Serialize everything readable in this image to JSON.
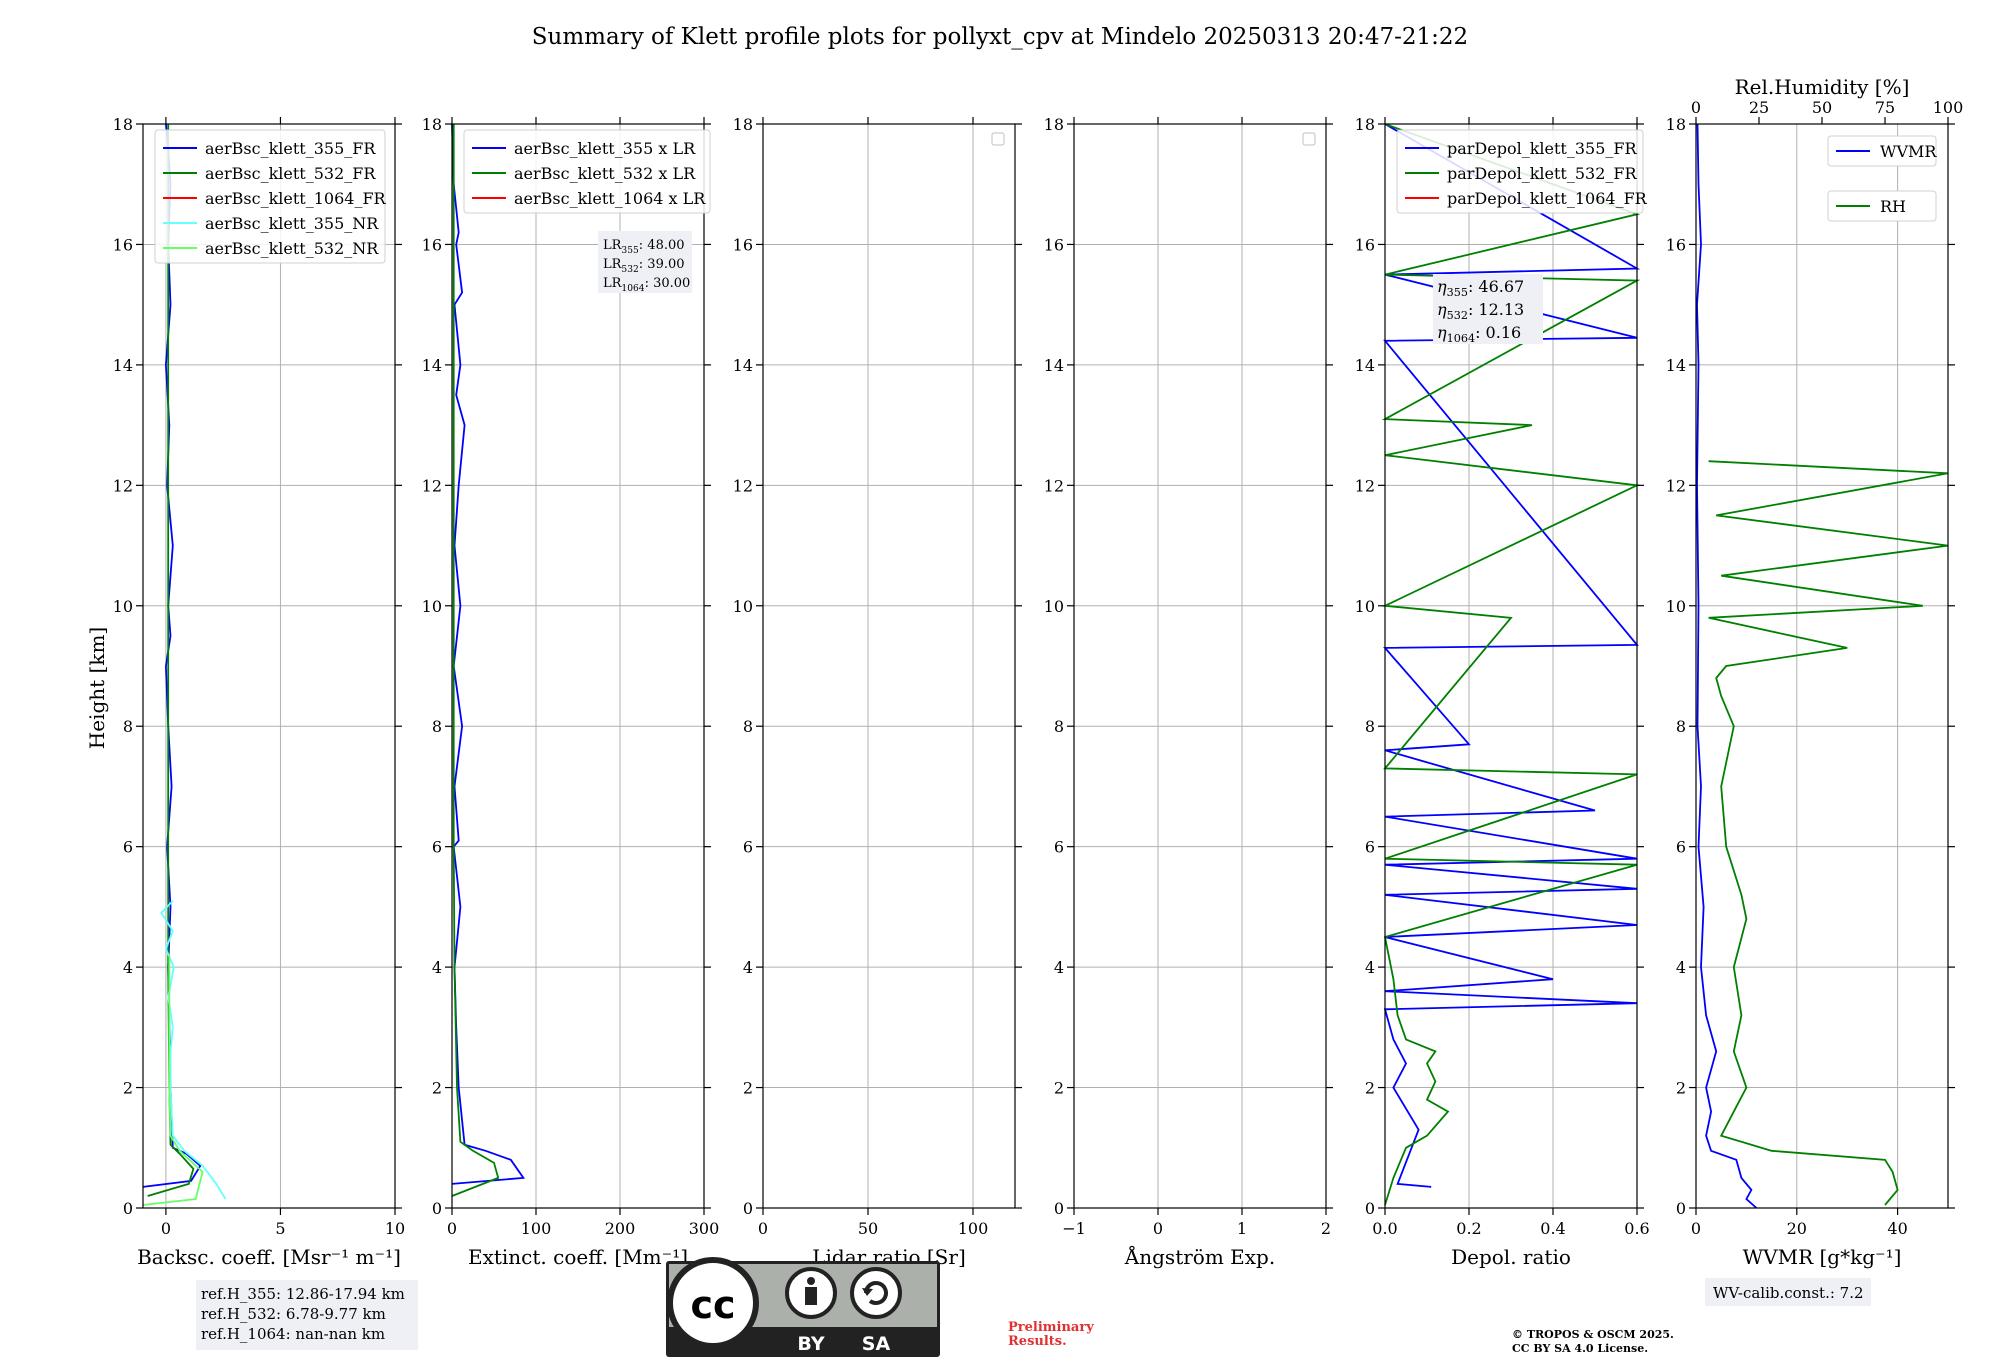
{
  "title": "Summary of Klett profile plots for pollyxt_cpv at Mindelo 20250313 20:47-21:22",
  "shared_ylabel": "Height [km]",
  "colors": {
    "c355": "#0000ff",
    "c532": "#008000",
    "c1064": "#ff0000",
    "c355nr": "#66ffff",
    "c532nr": "#66ff66"
  },
  "chart_data": [
    {
      "type": "line",
      "xlabel": "Backsc. coeff. [Msr⁻¹ m⁻¹]",
      "xlim": [
        -1,
        10
      ],
      "ylim": [
        0,
        18
      ],
      "xticks": [
        0,
        5,
        10
      ],
      "yticks": [
        0,
        2,
        4,
        6,
        8,
        10,
        12,
        14,
        16,
        18
      ],
      "legend": [
        "aerBsc_klett_355_FR",
        "aerBsc_klett_532_FR",
        "aerBsc_klett_1064_FR",
        "aerBsc_klett_355_NR",
        "aerBsc_klett_532_NR"
      ],
      "series": [
        {
          "name": "aerBsc_klett_355_FR",
          "color": "#0000ff",
          "x": [
            -1,
            1.1,
            1.5,
            0.9,
            0.3,
            0.2,
            0.15,
            0.1,
            0.2,
            0.05,
            0.25,
            0.1,
            0.0,
            0.2,
            0.1,
            0.3,
            0.05,
            0.15,
            0.0,
            0.2,
            0.1,
            0.2,
            0.1,
            0.0
          ],
          "y": [
            0.35,
            0.45,
            0.7,
            0.9,
            1.0,
            2.0,
            3.0,
            4.0,
            5.0,
            6.0,
            7.0,
            8.0,
            9.0,
            9.5,
            10.0,
            11.0,
            12.0,
            13.0,
            14.0,
            15.0,
            16.0,
            17.0,
            17.6,
            18.0
          ]
        },
        {
          "name": "aerBsc_klett_532_FR",
          "color": "#008000",
          "x": [
            -0.8,
            1.0,
            1.2,
            0.6,
            0.2,
            0.15,
            0.1,
            0.1,
            0.1,
            0.1,
            0.1,
            0.1
          ],
          "y": [
            0.2,
            0.4,
            0.65,
            0.9,
            1.05,
            2.0,
            4.0,
            6.0,
            8.0,
            10.0,
            14.0,
            18.0
          ]
        },
        {
          "name": "aerBsc_klett_355_NR",
          "color": "#66ffff",
          "x": [
            2.6,
            2.2,
            1.6,
            0.8,
            0.3,
            0.2,
            0.2,
            0.3,
            0.1,
            0.35,
            0.0,
            0.3,
            -0.2,
            0.3
          ],
          "y": [
            0.15,
            0.4,
            0.7,
            0.95,
            1.2,
            2.0,
            2.6,
            3.0,
            3.5,
            4.0,
            4.3,
            4.6,
            4.9,
            5.1
          ]
        },
        {
          "name": "aerBsc_klett_532_NR",
          "color": "#66ff66",
          "x": [
            -1,
            1.3,
            1.6,
            0.6,
            0.2,
            0.15,
            0.15,
            0.15,
            0.15
          ],
          "y": [
            0.05,
            0.15,
            0.6,
            0.95,
            1.2,
            2.0,
            3.0,
            3.8,
            4.2
          ]
        }
      ]
    },
    {
      "type": "line",
      "xlabel": "Extinct. coeff. [Mm⁻¹]",
      "xlim": [
        0,
        300
      ],
      "ylim": [
        0,
        18
      ],
      "xticks": [
        0,
        100,
        200,
        300
      ],
      "yticks": [
        0,
        2,
        4,
        6,
        8,
        10,
        12,
        14,
        16,
        18
      ],
      "legend": [
        "aerBsc_klett_355 x LR",
        "aerBsc_klett_532 x LR",
        "aerBsc_klett_1064 x LR"
      ],
      "lr_labels": [
        {
          "sym": "LR",
          "sub": "355",
          "text": ": 48.00"
        },
        {
          "sym": "LR",
          "sub": "532",
          "text": ": 39.00"
        },
        {
          "sym": "LR",
          "sub": "1064",
          "text": ": 30.00"
        }
      ],
      "series": [
        {
          "name": "aerBsc_klett_355 x LR",
          "color": "#0000ff",
          "x": [
            0,
            85,
            70,
            40,
            15,
            8,
            5,
            3,
            10,
            2,
            8,
            3,
            12,
            2,
            10,
            3,
            8,
            15,
            5,
            10,
            3,
            12,
            5,
            8,
            2,
            0
          ],
          "y": [
            0.4,
            0.5,
            0.8,
            0.95,
            1.05,
            2.0,
            3.0,
            4.0,
            5.0,
            6.0,
            6.1,
            7.0,
            8.0,
            9.0,
            10.0,
            11.0,
            12.0,
            13.0,
            13.5,
            14.0,
            15.0,
            15.2,
            16.0,
            16.2,
            17.0,
            18.0
          ]
        },
        {
          "name": "aerBsc_klett_532 x LR",
          "color": "#008000",
          "x": [
            0,
            55,
            50,
            25,
            10,
            6,
            3,
            2,
            2,
            2,
            2
          ],
          "y": [
            0.2,
            0.5,
            0.75,
            0.95,
            1.1,
            2.0,
            4.0,
            6.0,
            8.0,
            12.0,
            18.0
          ]
        }
      ]
    },
    {
      "type": "line",
      "xlabel": "Lidar ratio [Sr]",
      "xlim": [
        0,
        120
      ],
      "ylim": [
        0,
        18
      ],
      "xticks": [
        0,
        50,
        100
      ],
      "yticks": [
        0,
        2,
        4,
        6,
        8,
        10,
        12,
        14,
        16,
        18
      ],
      "legend": [],
      "series": []
    },
    {
      "type": "line",
      "xlabel": "Ångström Exp.",
      "xlim": [
        -1,
        2
      ],
      "ylim": [
        0,
        18
      ],
      "xticks": [
        -1,
        0,
        1,
        2
      ],
      "yticks": [
        0,
        2,
        4,
        6,
        8,
        10,
        12,
        14,
        16,
        18
      ],
      "legend": [],
      "series": []
    },
    {
      "type": "line",
      "xlabel": "Depol. ratio",
      "xlim": [
        0,
        0.6
      ],
      "ylim": [
        0,
        18
      ],
      "xticks": [
        0.0,
        0.2,
        0.4,
        0.6
      ],
      "yticks": [
        0,
        2,
        4,
        6,
        8,
        10,
        12,
        14,
        16,
        18
      ],
      "legend": [
        "parDepol_klett_355_FR",
        "parDepol_klett_532_FR",
        "parDepol_klett_1064_FR"
      ],
      "eta_labels": [
        {
          "sym": "η",
          "sub": "355",
          "text": ": 46.67"
        },
        {
          "sym": "η",
          "sub": "532",
          "text": ": 12.13"
        },
        {
          "sym": "η",
          "sub": "1064",
          "text": ": 0.16"
        }
      ],
      "series": [
        {
          "name": "parDepol_klett_355_FR",
          "color": "#0000ff",
          "x": [
            0.11,
            0.03,
            0.08,
            0.02,
            0.05,
            0.02,
            0.0,
            0.6,
            0.0,
            0.4,
            0.0,
            0.6,
            0.0,
            0.6,
            0.0,
            0.6,
            0.0,
            0.5,
            0.0,
            0.2,
            0.0,
            0.6,
            0.0,
            0.6,
            0.0,
            0.6,
            0.0
          ],
          "y": [
            0.35,
            0.4,
            1.3,
            2.0,
            2.4,
            2.8,
            3.3,
            3.4,
            3.6,
            3.8,
            4.5,
            4.7,
            5.2,
            5.3,
            5.7,
            5.8,
            6.5,
            6.6,
            7.6,
            7.7,
            9.3,
            9.35,
            14.4,
            14.45,
            15.5,
            15.6,
            18.0
          ]
        },
        {
          "name": "parDepol_klett_532_FR",
          "color": "#008000",
          "x": [
            0.0,
            0.02,
            0.05,
            0.1,
            0.15,
            0.1,
            0.12,
            0.1,
            0.12,
            0.05,
            0.03,
            0.02,
            0.0,
            0.6,
            0.0,
            0.6,
            0.0,
            0.3,
            0.0,
            0.6,
            0.0,
            0.35,
            0.0,
            0.6,
            0.0,
            0.6,
            0.0
          ],
          "y": [
            0.05,
            0.5,
            1.0,
            1.2,
            1.6,
            1.8,
            2.1,
            2.4,
            2.6,
            2.8,
            3.2,
            3.8,
            4.5,
            5.7,
            5.8,
            7.2,
            7.3,
            9.8,
            10.0,
            12.0,
            12.5,
            13.0,
            13.1,
            15.4,
            15.5,
            16.5,
            18.0
          ]
        }
      ]
    },
    {
      "type": "line",
      "xlabel": "WVMR [g*kg⁻¹]",
      "xlim": [
        0,
        50
      ],
      "ylim": [
        0,
        18
      ],
      "xticks": [
        0,
        20,
        40
      ],
      "yticks": [
        0,
        2,
        4,
        6,
        8,
        10,
        12,
        14,
        16,
        18
      ],
      "x2label": "Rel.Humidity [%]",
      "x2lim": [
        0,
        100
      ],
      "x2ticks": [
        0,
        25,
        50,
        75,
        100
      ],
      "legend": [
        "WVMR",
        "RH"
      ],
      "series": [
        {
          "name": "WVMR",
          "color": "#0000ff",
          "axis": "x",
          "x": [
            12,
            10,
            11,
            9,
            8,
            3,
            2,
            3,
            2,
            4,
            2,
            1,
            1.5,
            0.5,
            1,
            0.3,
            0.5,
            0.2,
            0.5,
            0.2,
            1,
            0.5,
            0.3
          ],
          "y": [
            0.0,
            0.15,
            0.3,
            0.5,
            0.8,
            0.95,
            1.2,
            1.6,
            2.0,
            2.6,
            3.2,
            4.0,
            5.0,
            6.0,
            7.0,
            8.0,
            10.0,
            12.0,
            14.0,
            15.0,
            16.0,
            17.0,
            18.0
          ]
        },
        {
          "name": "RH",
          "color": "#008000",
          "axis": "x2",
          "x": [
            75,
            80,
            78,
            75,
            30,
            10,
            15,
            20,
            15,
            18,
            15,
            20,
            18,
            12,
            10,
            15,
            10,
            8,
            12,
            60,
            5,
            90,
            10,
            100,
            8,
            100,
            5
          ],
          "y": [
            0.05,
            0.3,
            0.6,
            0.8,
            0.95,
            1.2,
            1.6,
            2.0,
            2.6,
            3.2,
            4.0,
            4.8,
            5.2,
            6.0,
            7.0,
            8.0,
            8.5,
            8.8,
            9.0,
            9.3,
            9.8,
            10.0,
            10.5,
            11.0,
            11.5,
            12.2,
            12.4
          ]
        }
      ]
    }
  ],
  "footer": {
    "ref_heights": [
      "ref.H_355: 12.86-17.94 km",
      "ref.H_532: 6.78-9.77 km",
      "ref.H_1064: nan-nan km"
    ],
    "license_badge": {
      "cc": "cc",
      "by": "BY",
      "sa": "SA"
    },
    "preliminary": "Preliminary\nResults.",
    "copyright_lines": [
      "© TROPOS & OSCM 2025.",
      "CC BY SA 4.0 License."
    ],
    "wv_calib": "WV-calib.const.: 7.2"
  }
}
